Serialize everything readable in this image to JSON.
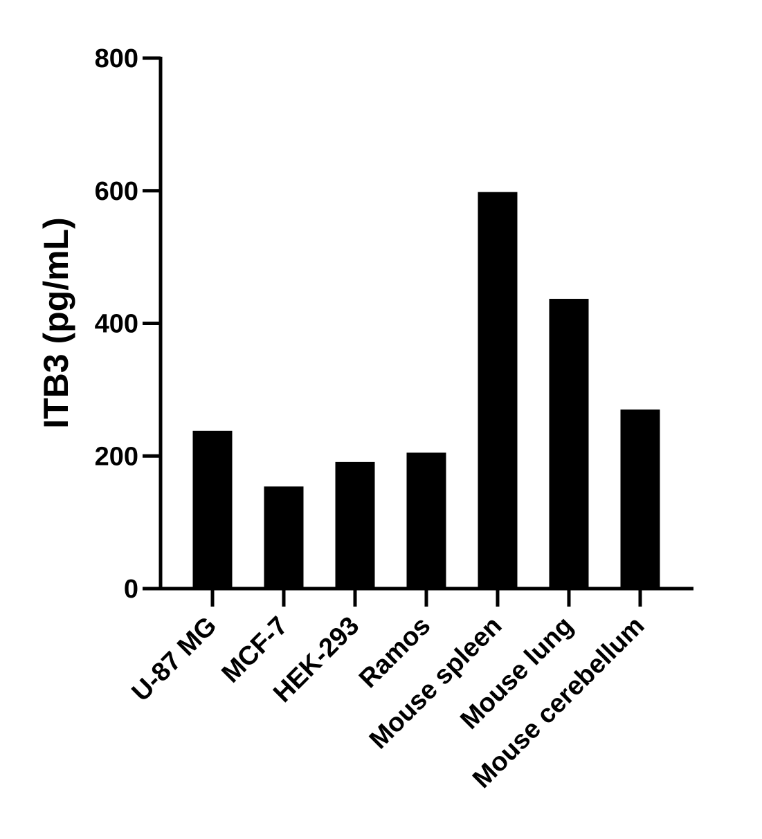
{
  "chart_data": {
    "type": "bar",
    "title": "",
    "xlabel": "",
    "ylabel": "ITB3 (pg/mL)",
    "ylim": [
      0,
      800
    ],
    "yticks": [
      0,
      200,
      400,
      600,
      800
    ],
    "categories": [
      "U-87 MG",
      "MCF-7",
      "HEK-293",
      "Ramos",
      "Mouse spleen",
      "Mouse lung",
      "Mouse cerebellum"
    ],
    "values": [
      238,
      154,
      191,
      205,
      598,
      437,
      270
    ],
    "colors": {
      "bar": "#000000",
      "axis": "#000000"
    },
    "grid": false,
    "legend": "none"
  }
}
